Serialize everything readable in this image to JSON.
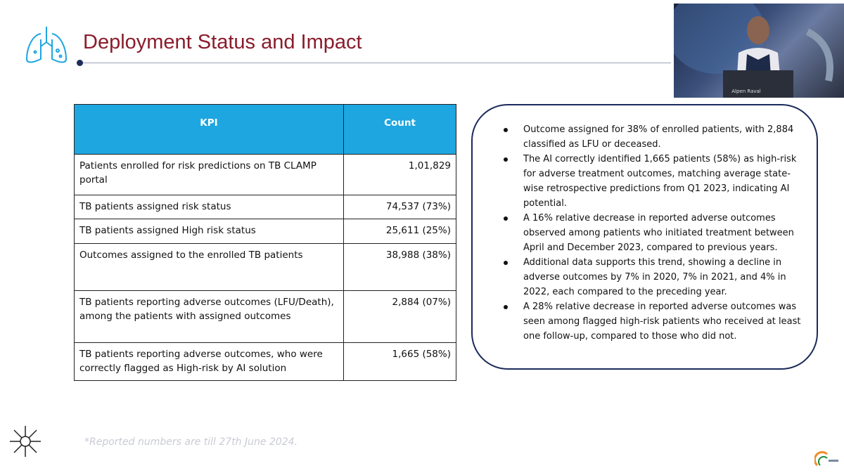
{
  "header": {
    "title": "Deployment Status and Impact"
  },
  "table": {
    "columns": [
      "KPI",
      "Count"
    ],
    "rows": [
      [
        "Patients enrolled for risk predictions on TB CLAMP portal",
        "1,01,829"
      ],
      [
        "TB patients assigned risk status",
        "74,537 (73%)"
      ],
      [
        "TB patients assigned High risk status",
        "25,611 (25%)"
      ],
      [
        "Outcomes assigned to the enrolled TB patients",
        "38,988 (38%)"
      ],
      [
        "TB patients reporting adverse outcomes (LFU/Death), among the patients with assigned outcomes",
        "2,884 (07%)"
      ],
      [
        "TB patients reporting adverse outcomes, who were correctly flagged as High-risk by AI solution",
        "1,665 (58%)"
      ]
    ]
  },
  "bullets": [
    "Outcome assigned for 38% of enrolled patients, with 2,884 classified as LFU or deceased.",
    "The AI correctly identified 1,665 patients (58%) as high-risk for adverse treatment outcomes, matching average state-wise retrospective predictions from Q1 2023, indicating AI potential.",
    "A 16% relative decrease in reported adverse outcomes observed among patients who initiated treatment between April and December 2023, compared to previous years.",
    "Additional data supports this trend, showing a decline in adverse outcomes by 7% in 2020, 7% in 2021, and 4% in 2022, each compared to the preceding year.",
    "A 28% relative decrease in reported adverse outcomes was seen among flagged high-risk patients who received at least one follow-up, compared to those who did not."
  ],
  "footnote": "*Reported numbers are till  27th June 2024.",
  "video": {
    "nameplate": "Alpen Raval"
  }
}
